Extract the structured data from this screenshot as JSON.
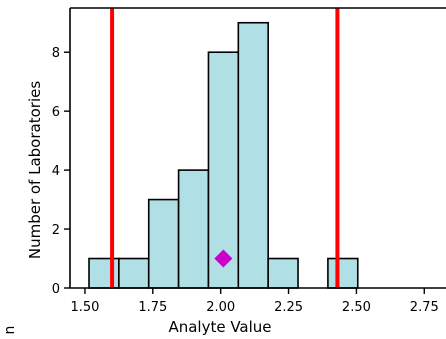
{
  "chart_data": {
    "type": "bar",
    "xlabel": "Analyte Value",
    "ylabel": "Number of Laboratories",
    "xlim": [
      1.445,
      2.83
    ],
    "ylim": [
      0,
      9.5
    ],
    "x_ticks": [
      "1.50",
      "1.75",
      "2.00",
      "2.25",
      "2.50",
      "2.75"
    ],
    "x_tick_values": [
      1.5,
      1.75,
      2.0,
      2.25,
      2.5,
      2.75
    ],
    "y_ticks": [
      "0",
      "2",
      "4",
      "6",
      "8"
    ],
    "y_tick_values": [
      0,
      2,
      4,
      6,
      8
    ],
    "bins": [
      {
        "start": 1.515,
        "end": 1.625,
        "count": 1
      },
      {
        "start": 1.625,
        "end": 1.735,
        "count": 1
      },
      {
        "start": 1.735,
        "end": 1.845,
        "count": 3
      },
      {
        "start": 1.845,
        "end": 1.955,
        "count": 4
      },
      {
        "start": 1.955,
        "end": 2.065,
        "count": 8
      },
      {
        "start": 2.065,
        "end": 2.175,
        "count": 9
      },
      {
        "start": 2.175,
        "end": 2.285,
        "count": 1
      },
      {
        "start": 2.285,
        "end": 2.395,
        "count": 0
      },
      {
        "start": 2.395,
        "end": 2.505,
        "count": 1
      }
    ],
    "vertical_lines": [
      1.6,
      2.43
    ],
    "marker": {
      "x": 2.01,
      "y": 1,
      "shape": "diamond"
    },
    "grid": false,
    "colors": {
      "bar_fill": "#b0dfe5",
      "bar_edge": "#000000",
      "lines": "#ff0000",
      "marker": "#cc00cc"
    }
  },
  "fragment_text": "n"
}
